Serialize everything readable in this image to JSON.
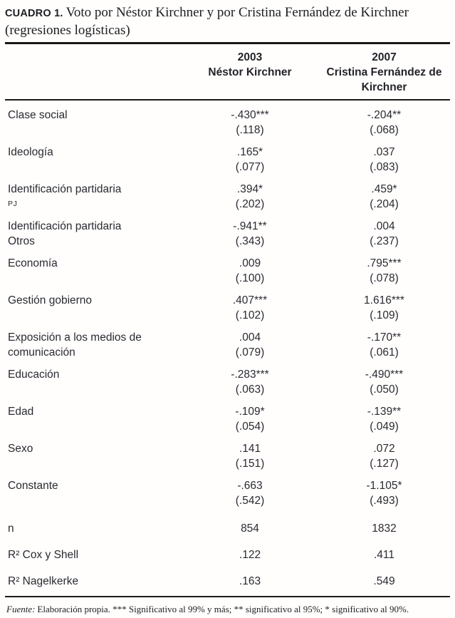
{
  "title": {
    "label": "CUADRO 1.",
    "line1": "Voto por Néstor Kirchner y por Cristina Fernández de Kirchner",
    "line2": "(regresiones logísticas)"
  },
  "header": {
    "columns": [
      {
        "year": "2003",
        "candidate": "Néstor Kirchner"
      },
      {
        "year": "2007",
        "candidate": "Cristina Fernández de Kirchner"
      }
    ]
  },
  "table": {
    "rows": [
      {
        "label": "Clase social",
        "sublabel": "",
        "values": [
          {
            "coef": "-.430***",
            "se": "(.118)"
          },
          {
            "coef": "-.204**",
            "se": "(.068)"
          }
        ]
      },
      {
        "label": "Ideología",
        "sublabel": "",
        "values": [
          {
            "coef": ".165*",
            "se": "(.077)"
          },
          {
            "coef": ".037",
            "se": "(.083)"
          }
        ]
      },
      {
        "label": "Identificación partidaria",
        "sublabel": "PJ",
        "values": [
          {
            "coef": ".394*",
            "se": "(.202)"
          },
          {
            "coef": ".459*",
            "se": "(.204)"
          }
        ]
      },
      {
        "label": "Identificación partidaria",
        "sublabel": "Otros",
        "values": [
          {
            "coef": "-.941**",
            "se": "(.343)"
          },
          {
            "coef": ".004",
            "se": "(.237)"
          }
        ]
      },
      {
        "label": "Economía",
        "sublabel": "",
        "values": [
          {
            "coef": ".009",
            "se": "(.100)"
          },
          {
            "coef": ".795***",
            "se": "(.078)"
          }
        ]
      },
      {
        "label": "Gestión gobierno",
        "sublabel": "",
        "values": [
          {
            "coef": ".407***",
            "se": "(.102)"
          },
          {
            "coef": "1.616***",
            "se": "(.109)"
          }
        ]
      },
      {
        "label": "Exposición a los medios de",
        "sublabel": "comunicación",
        "values": [
          {
            "coef": ".004",
            "se": "(.079)"
          },
          {
            "coef": "-.170**",
            "se": "(.061)"
          }
        ]
      },
      {
        "label": "Educación",
        "sublabel": "",
        "values": [
          {
            "coef": "-.283***",
            "se": "(.063)"
          },
          {
            "coef": "-.490***",
            "se": "(.050)"
          }
        ]
      },
      {
        "label": "Edad",
        "sublabel": "",
        "values": [
          {
            "coef": "-.109*",
            "se": "(.054)"
          },
          {
            "coef": "-.139**",
            "se": "(.049)"
          }
        ]
      },
      {
        "label": "Sexo",
        "sublabel": "",
        "values": [
          {
            "coef": ".141",
            "se": "(.151)"
          },
          {
            "coef": ".072",
            "se": "(.127)"
          }
        ]
      },
      {
        "label": "Constante",
        "sublabel": "",
        "values": [
          {
            "coef": "-.663",
            "se": "(.542)"
          },
          {
            "coef": "-1.105*",
            "se": "(.493)"
          }
        ]
      }
    ],
    "stats": [
      {
        "label": "n",
        "values": [
          "854",
          "1832"
        ]
      },
      {
        "label": "R² Cox y Shell",
        "values": [
          ".122",
          ".411"
        ]
      },
      {
        "label": "R² Nagelkerke",
        "values": [
          ".163",
          ".549"
        ]
      }
    ]
  },
  "footnote": {
    "source_label": "Fuente:",
    "text": "Elaboración propia. *** Significativo al 99% y más; ** significativo al 95%; * significativo al 90%."
  }
}
